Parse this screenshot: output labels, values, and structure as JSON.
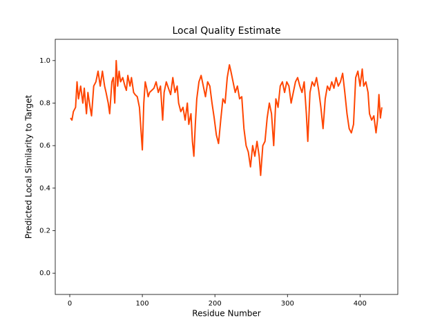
{
  "chart_data": {
    "type": "line",
    "title": "Local Quality Estimate",
    "x_label": "Residue Number",
    "y_label": "Predicted Local Similarity to Target",
    "color": "#ff4500",
    "xlim": [
      -20,
      452
    ],
    "ylim": [
      -0.1,
      1.1
    ],
    "xticks": [
      0,
      100,
      200,
      300,
      400
    ],
    "yticks": [
      {
        "value": 0,
        "label": "0.0"
      },
      0.2,
      0.4,
      0.6,
      0.8,
      {
        "value": 1,
        "label": "1.0"
      }
    ],
    "x": [
      1,
      3,
      5,
      8,
      10,
      12,
      15,
      18,
      20,
      23,
      25,
      28,
      30,
      33,
      36,
      39,
      42,
      45,
      48,
      50,
      53,
      55,
      58,
      60,
      62,
      64,
      66,
      68,
      70,
      73,
      76,
      78,
      80,
      83,
      85,
      88,
      90,
      93,
      96,
      98,
      100,
      102,
      104,
      106,
      108,
      110,
      113,
      116,
      119,
      122,
      125,
      128,
      130,
      133,
      136,
      139,
      142,
      145,
      148,
      150,
      153,
      156,
      159,
      162,
      164,
      167,
      169,
      171,
      173,
      175,
      178,
      181,
      184,
      187,
      190,
      193,
      196,
      199,
      202,
      205,
      208,
      211,
      214,
      217,
      220,
      222,
      225,
      228,
      231,
      234,
      237,
      240,
      243,
      246,
      249,
      252,
      255,
      258,
      261,
      263,
      266,
      269,
      272,
      275,
      278,
      281,
      284,
      287,
      290,
      293,
      296,
      299,
      302,
      305,
      308,
      311,
      314,
      317,
      320,
      323,
      326,
      328,
      331,
      334,
      337,
      340,
      343,
      346,
      349,
      352,
      355,
      358,
      361,
      364,
      367,
      370,
      373,
      376,
      379,
      382,
      385,
      388,
      391,
      394,
      397,
      400,
      403,
      405,
      408,
      411,
      413,
      416,
      419,
      422,
      424,
      426,
      428,
      430
    ],
    "values": [
      0.73,
      0.72,
      0.76,
      0.78,
      0.9,
      0.82,
      0.88,
      0.8,
      0.87,
      0.75,
      0.85,
      0.78,
      0.74,
      0.88,
      0.9,
      0.95,
      0.88,
      0.95,
      0.88,
      0.85,
      0.8,
      0.75,
      0.9,
      0.92,
      0.8,
      1.0,
      0.88,
      0.95,
      0.9,
      0.92,
      0.88,
      0.86,
      0.93,
      0.88,
      0.92,
      0.85,
      0.84,
      0.83,
      0.78,
      0.68,
      0.58,
      0.8,
      0.9,
      0.87,
      0.83,
      0.85,
      0.86,
      0.87,
      0.9,
      0.85,
      0.88,
      0.72,
      0.85,
      0.9,
      0.87,
      0.84,
      0.92,
      0.85,
      0.88,
      0.8,
      0.76,
      0.78,
      0.72,
      0.8,
      0.7,
      0.75,
      0.62,
      0.55,
      0.7,
      0.82,
      0.9,
      0.93,
      0.88,
      0.83,
      0.9,
      0.88,
      0.8,
      0.73,
      0.65,
      0.61,
      0.72,
      0.82,
      0.8,
      0.92,
      0.98,
      0.95,
      0.9,
      0.85,
      0.88,
      0.82,
      0.83,
      0.68,
      0.6,
      0.57,
      0.5,
      0.6,
      0.55,
      0.62,
      0.55,
      0.46,
      0.6,
      0.62,
      0.73,
      0.8,
      0.75,
      0.6,
      0.82,
      0.78,
      0.88,
      0.9,
      0.85,
      0.9,
      0.88,
      0.8,
      0.85,
      0.9,
      0.92,
      0.88,
      0.85,
      0.9,
      0.75,
      0.62,
      0.85,
      0.9,
      0.88,
      0.92,
      0.86,
      0.78,
      0.68,
      0.82,
      0.88,
      0.86,
      0.9,
      0.87,
      0.92,
      0.88,
      0.9,
      0.94,
      0.85,
      0.75,
      0.68,
      0.66,
      0.7,
      0.92,
      0.95,
      0.88,
      0.96,
      0.88,
      0.9,
      0.85,
      0.75,
      0.72,
      0.74,
      0.66,
      0.72,
      0.84,
      0.73,
      0.78
    ]
  }
}
